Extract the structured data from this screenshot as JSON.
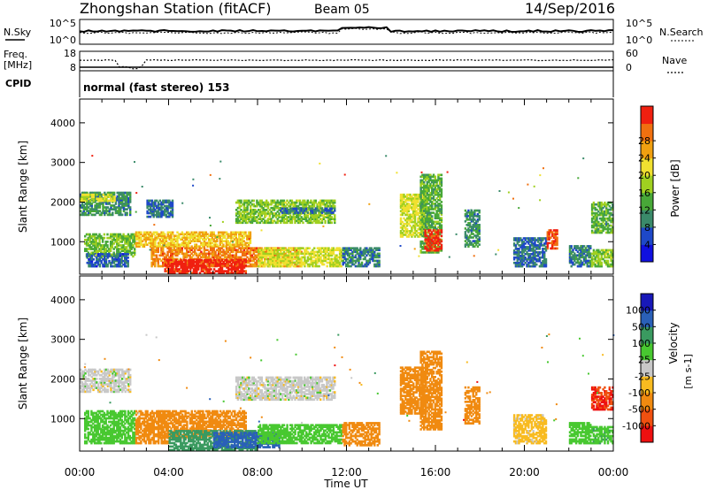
{
  "header": {
    "station": "Zhongshan Station (fitACF)",
    "beam": "Beam 05",
    "date": "14/Sep/2016"
  },
  "top_panels": {
    "nsky_label": "N.Sky",
    "nsky_ticks": [
      "10^5",
      "10^0"
    ],
    "nsearch_label": "N.Search",
    "nsearch_ticks": [
      "10^5",
      "10^0"
    ],
    "freq_label": "Freq.",
    "freq_unit": "[MHz]",
    "freq_ticks": [
      "18",
      "8"
    ],
    "nave_label": "Nave",
    "nave_ticks": [
      "60",
      "0"
    ],
    "cpid_label": "CPID",
    "cpid_text": "normal (fast stereo) 153"
  },
  "colors": {
    "power": [
      "#1010e0",
      "#1e48c8",
      "#3a8a6a",
      "#48a838",
      "#a0d020",
      "#f0e030",
      "#f0a010",
      "#f07010",
      "#f02010"
    ],
    "velocity": [
      "#ee1010",
      "#f05010",
      "#f08a10",
      "#f8bb20",
      "#c8c8c8",
      "#48c830",
      "#3a9a60",
      "#2a60b8",
      "#1818b8"
    ]
  },
  "chart_data": [
    {
      "type": "heatmap",
      "name": "power-panel",
      "ylabel": "Slant Range [km]",
      "yticks": [
        "1000",
        "2000",
        "3000",
        "4000"
      ],
      "ylim": [
        180,
        4600
      ],
      "xlim_hours": [
        0,
        24
      ],
      "colorbar": {
        "label": "Power [dB]",
        "ticks": [
          "4",
          "8",
          "12",
          "16",
          "20",
          "24",
          "28"
        ],
        "range": [
          0,
          30
        ]
      },
      "blobs": [
        {
          "t0": 0.0,
          "t1": 2.3,
          "r0": 1650,
          "r1": 2250,
          "v": 9
        },
        {
          "t0": 0.0,
          "t1": 1.6,
          "r0": 2000,
          "r1": 2200,
          "v": 17
        },
        {
          "t0": 0.2,
          "t1": 2.5,
          "r0": 600,
          "r1": 1200,
          "v": 13
        },
        {
          "t0": 0.3,
          "t1": 2.2,
          "r0": 350,
          "r1": 700,
          "v": 6
        },
        {
          "t0": 3.0,
          "t1": 4.2,
          "r0": 1600,
          "r1": 2050,
          "v": 7
        },
        {
          "t0": 2.5,
          "t1": 7.7,
          "r0": 850,
          "r1": 1250,
          "v": 20
        },
        {
          "t0": 3.2,
          "t1": 10.0,
          "r0": 350,
          "r1": 850,
          "v": 24
        },
        {
          "t0": 3.8,
          "t1": 7.5,
          "r0": 180,
          "r1": 550,
          "v": 29
        },
        {
          "t0": 7.0,
          "t1": 11.5,
          "r0": 1450,
          "r1": 2050,
          "v": 14
        },
        {
          "t0": 9.0,
          "t1": 11.5,
          "r0": 1700,
          "r1": 1850,
          "v": 7
        },
        {
          "t0": 8.0,
          "t1": 11.8,
          "r0": 350,
          "r1": 850,
          "v": 17
        },
        {
          "t0": 11.8,
          "t1": 13.5,
          "r0": 350,
          "r1": 850,
          "v": 8
        },
        {
          "t0": 14.4,
          "t1": 15.6,
          "r0": 1100,
          "r1": 2200,
          "v": 17
        },
        {
          "t0": 15.3,
          "t1": 16.3,
          "r0": 700,
          "r1": 2700,
          "v": 12
        },
        {
          "t0": 15.5,
          "t1": 16.3,
          "r0": 750,
          "r1": 1300,
          "v": 28
        },
        {
          "t0": 17.3,
          "t1": 18.0,
          "r0": 850,
          "r1": 1800,
          "v": 9
        },
        {
          "t0": 19.5,
          "t1": 21.0,
          "r0": 350,
          "r1": 1100,
          "v": 7
        },
        {
          "t0": 21.0,
          "t1": 21.5,
          "r0": 800,
          "r1": 1300,
          "v": 26
        },
        {
          "t0": 22.0,
          "t1": 23.0,
          "r0": 350,
          "r1": 900,
          "v": 8
        },
        {
          "t0": 23.0,
          "t1": 24.0,
          "r0": 1200,
          "r1": 2000,
          "v": 12
        },
        {
          "t0": 23.0,
          "t1": 24.0,
          "r0": 350,
          "r1": 800,
          "v": 14
        }
      ]
    },
    {
      "type": "heatmap",
      "name": "velocity-panel",
      "ylabel": "Slant Range [km]",
      "yticks": [
        "1000",
        "2000",
        "3000",
        "4000"
      ],
      "ylim": [
        180,
        4600
      ],
      "xlim_hours": [
        0,
        24
      ],
      "xticks": [
        "00:00",
        "04:00",
        "08:00",
        "12:00",
        "16:00",
        "20:00",
        "00:00"
      ],
      "xlabel": "Time UT",
      "colorbar": {
        "label": "Velocity",
        "unit": "[m s-1]",
        "ticks": [
          "-1000",
          "-500",
          "-100",
          "-25",
          "25",
          "100",
          "500",
          "1000"
        ]
      },
      "blobs": [
        {
          "t0": 0.0,
          "t1": 2.3,
          "r0": 1650,
          "r1": 2250,
          "v": 0
        },
        {
          "t0": 0.2,
          "t1": 2.5,
          "r0": 350,
          "r1": 1200,
          "v": 60
        },
        {
          "t0": 2.5,
          "t1": 4.0,
          "r0": 350,
          "r1": 1200,
          "v": -200
        },
        {
          "t0": 3.5,
          "t1": 7.5,
          "r0": 500,
          "r1": 1200,
          "v": -150
        },
        {
          "t0": 4.0,
          "t1": 8.0,
          "r0": 180,
          "r1": 700,
          "v": 400
        },
        {
          "t0": 6.0,
          "t1": 9.0,
          "r0": 250,
          "r1": 650,
          "v": 600
        },
        {
          "t0": 7.0,
          "t1": 11.5,
          "r0": 1450,
          "r1": 2050,
          "v": 0
        },
        {
          "t0": 8.0,
          "t1": 11.8,
          "r0": 350,
          "r1": 850,
          "v": 70
        },
        {
          "t0": 11.8,
          "t1": 13.5,
          "r0": 300,
          "r1": 900,
          "v": -200
        },
        {
          "t0": 14.4,
          "t1": 15.6,
          "r0": 1100,
          "r1": 2300,
          "v": -250
        },
        {
          "t0": 15.3,
          "t1": 16.3,
          "r0": 700,
          "r1": 2700,
          "v": -300
        },
        {
          "t0": 17.3,
          "t1": 18.0,
          "r0": 850,
          "r1": 1800,
          "v": -150
        },
        {
          "t0": 19.5,
          "t1": 21.0,
          "r0": 350,
          "r1": 1100,
          "v": -50
        },
        {
          "t0": 22.0,
          "t1": 23.0,
          "r0": 350,
          "r1": 900,
          "v": 70
        },
        {
          "t0": 23.0,
          "t1": 24.0,
          "r0": 1200,
          "r1": 1800,
          "v": -1000
        },
        {
          "t0": 23.0,
          "t1": 24.0,
          "r0": 350,
          "r1": 800,
          "v": 80
        }
      ]
    }
  ]
}
